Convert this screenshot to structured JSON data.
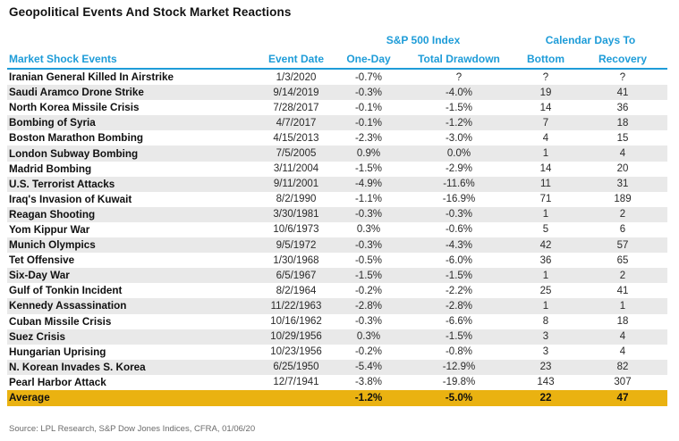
{
  "title": "Geopolitical Events And Stock Market Reactions",
  "source": "Source: LPL Research, S&P Dow Jones Indices, CFRA, 01/06/20",
  "colors": {
    "header_blue": "#1e9cd8",
    "alt_row_gray": "#e9e9e9",
    "average_gold": "#eab211",
    "title_black": "#121212",
    "source_gray": "#6b6b6b"
  },
  "chart_data": {
    "type": "table",
    "title": "Geopolitical Events And Stock Market Reactions",
    "group_headers": [
      "S&P 500 Index",
      "Calendar Days To"
    ],
    "columns": [
      "Market Shock Events",
      "Event Date",
      "One-Day",
      "Total Drawdown",
      "Bottom",
      "Recovery"
    ],
    "rows": [
      [
        "Iranian General Killed In Airstrike",
        "1/3/2020",
        "-0.7%",
        "?",
        "?",
        "?"
      ],
      [
        "Saudi Aramco Drone Strike",
        "9/14/2019",
        "-0.3%",
        "-4.0%",
        "19",
        "41"
      ],
      [
        "North Korea Missile Crisis",
        "7/28/2017",
        "-0.1%",
        "-1.5%",
        "14",
        "36"
      ],
      [
        "Bombing of Syria",
        "4/7/2017",
        "-0.1%",
        "-1.2%",
        "7",
        "18"
      ],
      [
        "Boston Marathon Bombing",
        "4/15/2013",
        "-2.3%",
        "-3.0%",
        "4",
        "15"
      ],
      [
        "London Subway Bombing",
        "7/5/2005",
        "0.9%",
        "0.0%",
        "1",
        "4"
      ],
      [
        "Madrid Bombing",
        "3/11/2004",
        "-1.5%",
        "-2.9%",
        "14",
        "20"
      ],
      [
        "U.S. Terrorist Attacks",
        "9/11/2001",
        "-4.9%",
        "-11.6%",
        "11",
        "31"
      ],
      [
        "Iraq's Invasion of Kuwait",
        "8/2/1990",
        "-1.1%",
        "-16.9%",
        "71",
        "189"
      ],
      [
        "Reagan Shooting",
        "3/30/1981",
        "-0.3%",
        "-0.3%",
        "1",
        "2"
      ],
      [
        "Yom Kippur War",
        "10/6/1973",
        "0.3%",
        "-0.6%",
        "5",
        "6"
      ],
      [
        "Munich Olympics",
        "9/5/1972",
        "-0.3%",
        "-4.3%",
        "42",
        "57"
      ],
      [
        "Tet Offensive",
        "1/30/1968",
        "-0.5%",
        "-6.0%",
        "36",
        "65"
      ],
      [
        "Six-Day War",
        "6/5/1967",
        "-1.5%",
        "-1.5%",
        "1",
        "2"
      ],
      [
        "Gulf of Tonkin Incident",
        "8/2/1964",
        "-0.2%",
        "-2.2%",
        "25",
        "41"
      ],
      [
        "Kennedy Assassination",
        "11/22/1963",
        "-2.8%",
        "-2.8%",
        "1",
        "1"
      ],
      [
        "Cuban Missile Crisis",
        "10/16/1962",
        "-0.3%",
        "-6.6%",
        "8",
        "18"
      ],
      [
        "Suez Crisis",
        "10/29/1956",
        "0.3%",
        "-1.5%",
        "3",
        "4"
      ],
      [
        "Hungarian Uprising",
        "10/23/1956",
        "-0.2%",
        "-0.8%",
        "3",
        "4"
      ],
      [
        "N. Korean Invades S. Korea",
        "6/25/1950",
        "-5.4%",
        "-12.9%",
        "23",
        "82"
      ],
      [
        "Pearl Harbor Attack",
        "12/7/1941",
        "-3.8%",
        "-19.8%",
        "143",
        "307"
      ]
    ],
    "average_row": [
      "Average",
      "",
      "-1.2%",
      "-5.0%",
      "22",
      "47"
    ],
    "source": "Source: LPL Research, S&P Dow Jones Indices, CFRA, 01/06/20"
  }
}
